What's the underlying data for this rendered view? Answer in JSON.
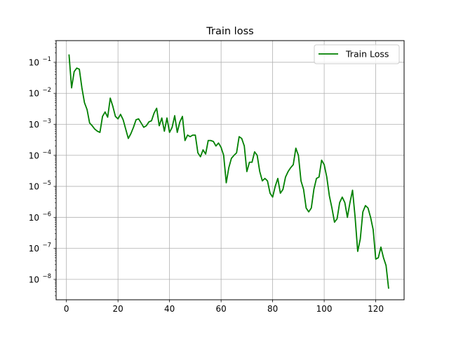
{
  "chart_data": {
    "type": "line",
    "title": "Train loss",
    "xlabel": "",
    "ylabel": "",
    "yscale": "log",
    "xlim": [
      -4,
      131
    ],
    "ylim": [
      2.2e-09,
      0.5
    ],
    "x_ticks": [
      0,
      20,
      40,
      60,
      80,
      100,
      120
    ],
    "x_tick_labels": [
      "0",
      "20",
      "40",
      "60",
      "80",
      "100",
      "120"
    ],
    "y_ticks": [
      1e-08,
      1e-07,
      1e-06,
      1e-05,
      0.0001,
      0.001,
      0.01,
      0.1
    ],
    "y_tick_labels": [
      {
        "base": "10",
        "exp": "−8"
      },
      {
        "base": "10",
        "exp": "−7"
      },
      {
        "base": "10",
        "exp": "−6"
      },
      {
        "base": "10",
        "exp": "−5"
      },
      {
        "base": "10",
        "exp": "−4"
      },
      {
        "base": "10",
        "exp": "−3"
      },
      {
        "base": "10",
        "exp": "−2"
      },
      {
        "base": "10",
        "exp": "−1"
      }
    ],
    "grid": true,
    "legend_position": "top-right",
    "series": [
      {
        "name": "Train Loss",
        "color": "#008000",
        "x": [
          1,
          2,
          3,
          4,
          5,
          6,
          7,
          8,
          9,
          10,
          11,
          12,
          13,
          14,
          15,
          16,
          17,
          18,
          19,
          20,
          21,
          22,
          23,
          24,
          25,
          26,
          27,
          28,
          29,
          30,
          31,
          32,
          33,
          34,
          35,
          36,
          37,
          38,
          39,
          40,
          41,
          42,
          43,
          44,
          45,
          46,
          47,
          48,
          49,
          50,
          51,
          52,
          53,
          54,
          55,
          56,
          57,
          58,
          59,
          60,
          61,
          62,
          63,
          64,
          65,
          66,
          67,
          68,
          69,
          70,
          71,
          72,
          73,
          74,
          75,
          76,
          77,
          78,
          79,
          80,
          81,
          82,
          83,
          84,
          85,
          86,
          87,
          88,
          89,
          90,
          91,
          92,
          93,
          94,
          95,
          96,
          97,
          98,
          99,
          100,
          101,
          102,
          103,
          104,
          105,
          106,
          107,
          108,
          109,
          110,
          111,
          112,
          113,
          114,
          115,
          116,
          117,
          118,
          119,
          120,
          121,
          122,
          123,
          124,
          125
        ],
        "y": [
          0.18,
          0.015,
          0.05,
          0.065,
          0.06,
          0.015,
          0.005,
          0.003,
          0.0011,
          0.0009,
          0.0007,
          0.0006,
          0.00055,
          0.0018,
          0.0025,
          0.0017,
          0.007,
          0.0038,
          0.0018,
          0.0015,
          0.0021,
          0.0014,
          0.0007,
          0.00035,
          0.0005,
          0.0008,
          0.0014,
          0.0015,
          0.0011,
          0.0008,
          0.0009,
          0.0012,
          0.0013,
          0.0023,
          0.0033,
          0.0009,
          0.0016,
          0.0006,
          0.0016,
          0.00055,
          0.0008,
          0.0019,
          0.00055,
          0.0012,
          0.0018,
          0.0003,
          0.00045,
          0.0004,
          0.00045,
          0.00045,
          0.00012,
          9e-05,
          0.00015,
          0.00011,
          0.0003,
          0.0003,
          0.00028,
          0.0002,
          0.00025,
          0.00018,
          0.0001,
          1.3e-05,
          4e-05,
          8e-05,
          0.0001,
          0.00012,
          0.0004,
          0.00035,
          0.0002,
          3e-05,
          6e-05,
          6e-05,
          0.00013,
          0.0001,
          3e-05,
          1.5e-05,
          1.8e-05,
          1.5e-05,
          6e-06,
          4.5e-06,
          1e-05,
          1.8e-05,
          6e-06,
          8e-06,
          2e-05,
          3e-05,
          4e-05,
          5e-05,
          0.00017,
          0.0001,
          1.5e-05,
          8e-06,
          2e-06,
          1.5e-06,
          2e-06,
          8e-06,
          1.8e-05,
          2e-05,
          7e-05,
          5e-05,
          2e-05,
          5e-06,
          2e-06,
          7e-07,
          9e-07,
          3e-06,
          4.5e-06,
          3e-06,
          1e-06,
          3e-06,
          7.5e-06,
          1e-06,
          8e-08,
          2e-07,
          1.5e-06,
          2.4e-06,
          2e-06,
          1e-06,
          4e-07,
          4.5e-08,
          5e-08,
          1.1e-07,
          5e-08,
          2.8e-08,
          5e-09
        ]
      }
    ]
  }
}
